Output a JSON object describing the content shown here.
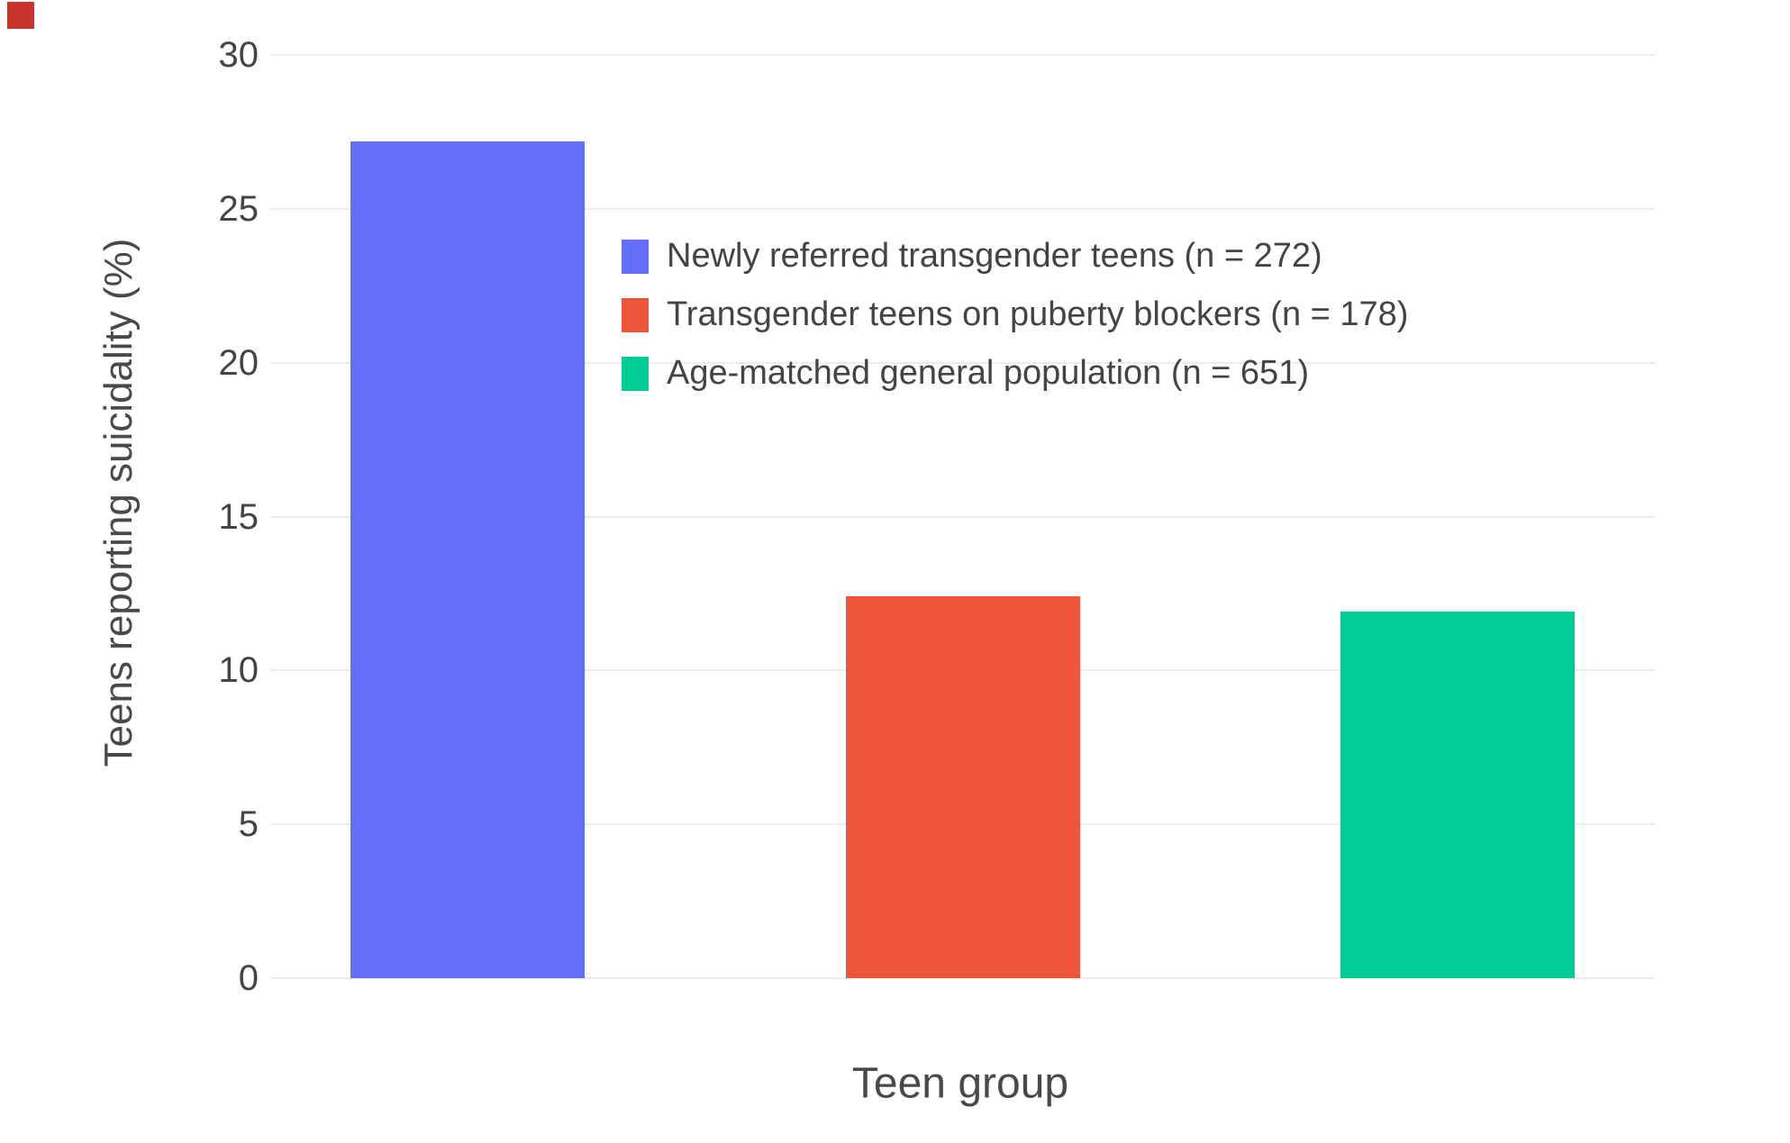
{
  "figure": {
    "background": "#ffffff",
    "corner_marker_color": "#c9342c"
  },
  "chart_data": {
    "type": "bar",
    "categories": [
      "Newly referred transgender teens (n = 272)",
      "Transgender teens on puberty blockers (n = 178)",
      "Age-matched general population (n = 651)"
    ],
    "values": [
      27.2,
      12.4,
      11.9
    ],
    "colors": [
      "#636EFA",
      "#EF553B",
      "#00CC96"
    ],
    "title": "",
    "xlabel": "Teen group",
    "ylabel": "Teens reporting suicidality (%)",
    "ylim": [
      0,
      30
    ],
    "yticks": [
      0,
      5,
      10,
      15,
      20,
      25,
      30
    ],
    "grid": true,
    "gridcolor": "#E7ECF5",
    "x_tick_labels_shown": false,
    "legend_position": "inside-top-center",
    "legend": [
      {
        "label": "Newly referred transgender teens (n = 272)",
        "color": "#636EFA"
      },
      {
        "label": "Transgender teens on puberty blockers (n = 178)",
        "color": "#EF553B"
      },
      {
        "label": "Age-matched general population (n = 651)",
        "color": "#00CC96"
      }
    ]
  }
}
